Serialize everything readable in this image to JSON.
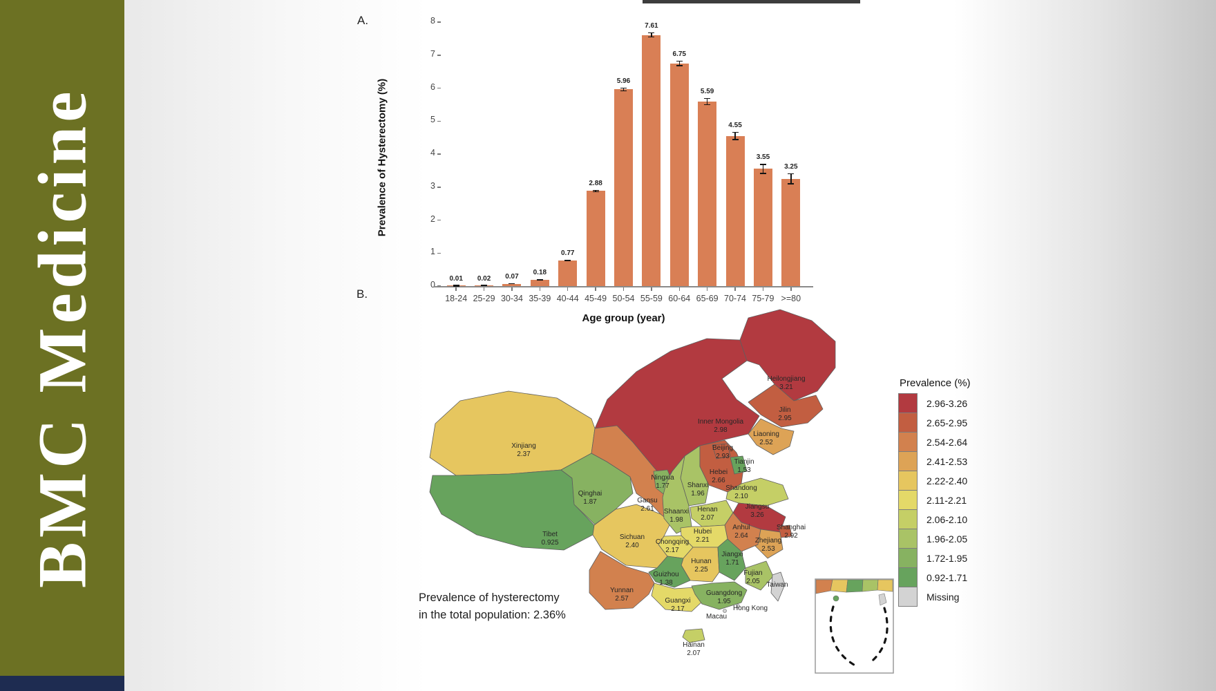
{
  "branding": {
    "journal": "BMC Medicine",
    "sidebar_color": "#6c7123",
    "footer_color": "#1e2c51"
  },
  "panel_a": {
    "label": "A."
  },
  "panel_b": {
    "label": "B.",
    "note_line1": "Prevalence of hysterectomy",
    "note_line2": "in the total population: 2.36%"
  },
  "chart_data": [
    {
      "type": "bar",
      "title": "",
      "xlabel": "Age group (year)",
      "ylabel": "Prevalence of Hysterectomy (%)",
      "ylim": [
        0,
        8
      ],
      "yticks": [
        0,
        1,
        2,
        3,
        4,
        5,
        6,
        7,
        8
      ],
      "grid": false,
      "bar_color": "#d97f55",
      "categories": [
        "18-24",
        "25-29",
        "30-34",
        "35-39",
        "40-44",
        "45-49",
        "50-54",
        "55-59",
        "60-64",
        "65-69",
        "70-74",
        "75-79",
        ">=80"
      ],
      "values": [
        0.01,
        0.02,
        0.07,
        0.18,
        0.77,
        2.88,
        5.96,
        7.61,
        6.75,
        5.59,
        4.55,
        3.55,
        3.25
      ],
      "errors": [
        0.008,
        0.01,
        0.015,
        0.02,
        0.025,
        0.04,
        0.06,
        0.08,
        0.08,
        0.11,
        0.13,
        0.15,
        0.17
      ],
      "value_labels": [
        "0.01",
        "0.02",
        "0.07",
        "0.18",
        "0.77",
        "2.88",
        "5.96",
        "7.61",
        "6.75",
        "5.59",
        "4.55",
        "3.55",
        "3.25"
      ]
    },
    {
      "type": "heatmap",
      "subtype": "choropleth-map-of-china",
      "legend_title": "Prevalence (%)",
      "legend_position": "right",
      "buckets": [
        {
          "label": "2.96-3.26",
          "color": "#b23a40"
        },
        {
          "label": "2.65-2.95",
          "color": "#c25e41"
        },
        {
          "label": "2.54-2.64",
          "color": "#d2814e"
        },
        {
          "label": "2.41-2.53",
          "color": "#dda356"
        },
        {
          "label": "2.22-2.40",
          "color": "#e6c65f"
        },
        {
          "label": "2.11-2.21",
          "color": "#e4d968"
        },
        {
          "label": "2.06-2.10",
          "color": "#c5cf66"
        },
        {
          "label": "1.96-2.05",
          "color": "#a9c366"
        },
        {
          "label": "1.72-1.95",
          "color": "#87b261"
        },
        {
          "label": "0.92-1.71",
          "color": "#67a35d"
        },
        {
          "label": "Missing",
          "color": "#d3d3d3"
        }
      ],
      "provinces": [
        {
          "id": "innermongolia",
          "name": "Inner Mongolia",
          "value": "2.98",
          "bucket": "2.96-3.26"
        },
        {
          "id": "heilongjiang",
          "name": "Heilongjiang",
          "value": "3.21",
          "bucket": "2.96-3.26"
        },
        {
          "id": "jilin",
          "name": "Jilin",
          "value": "2.95",
          "bucket": "2.65-2.95"
        },
        {
          "id": "liaoning",
          "name": "Liaoning",
          "value": "2.52",
          "bucket": "2.41-2.53"
        },
        {
          "id": "xinjiang",
          "name": "Xinjiang",
          "value": "2.37",
          "bucket": "2.22-2.40"
        },
        {
          "id": "tibet",
          "name": "Tibet",
          "value": "0.925",
          "bucket": "0.92-1.71"
        },
        {
          "id": "qinghai",
          "name": "Qinghai",
          "value": "1.87",
          "bucket": "1.72-1.95"
        },
        {
          "id": "gansu",
          "name": "Gansu",
          "value": "2.61",
          "bucket": "2.54-2.64"
        },
        {
          "id": "ningxia",
          "name": "Ningxia",
          "value": "1.77",
          "bucket": "1.72-1.95"
        },
        {
          "id": "sichuan",
          "name": "Sichuan",
          "value": "2.40",
          "bucket": "2.22-2.40"
        },
        {
          "id": "yunnan",
          "name": "Yunnan",
          "value": "2.57",
          "bucket": "2.54-2.64"
        },
        {
          "id": "shanxi",
          "name": "Shanxi",
          "value": "1.96",
          "bucket": "1.96-2.05"
        },
        {
          "id": "hebei",
          "name": "Hebei",
          "value": "2.66",
          "bucket": "2.65-2.95"
        },
        {
          "id": "beijing",
          "name": "Beijing",
          "value": "2.93",
          "bucket": "2.65-2.95"
        },
        {
          "id": "tianjin",
          "name": "Tianjin",
          "value": "1.53",
          "bucket": "0.92-1.71"
        },
        {
          "id": "shandong",
          "name": "Shandong",
          "value": "2.10",
          "bucket": "2.06-2.10"
        },
        {
          "id": "shaanxi",
          "name": "Shaanxi",
          "value": "1.98",
          "bucket": "1.96-2.05"
        },
        {
          "id": "henan",
          "name": "Henan",
          "value": "2.07",
          "bucket": "2.06-2.10"
        },
        {
          "id": "jiangsu",
          "name": "Jiangsu",
          "value": "3.26",
          "bucket": "2.96-3.26"
        },
        {
          "id": "anhui",
          "name": "Anhui",
          "value": "2.64",
          "bucket": "2.54-2.64"
        },
        {
          "id": "shanghai",
          "name": "Shanghai",
          "value": "2.92",
          "bucket": "2.65-2.95"
        },
        {
          "id": "hubei",
          "name": "Hubei",
          "value": "2.21",
          "bucket": "2.11-2.21"
        },
        {
          "id": "chongqing",
          "name": "Chongqing",
          "value": "2.17",
          "bucket": "2.11-2.21"
        },
        {
          "id": "zhejiang",
          "name": "Zhejiang",
          "value": "2.53",
          "bucket": "2.41-2.53"
        },
        {
          "id": "hunan",
          "name": "Hunan",
          "value": "2.25",
          "bucket": "2.22-2.40"
        },
        {
          "id": "jiangxi",
          "name": "Jiangxi",
          "value": "1.71",
          "bucket": "0.92-1.71"
        },
        {
          "id": "guizhou",
          "name": "Guizhou",
          "value": "1.38",
          "bucket": "0.92-1.71"
        },
        {
          "id": "fujian",
          "name": "Fujian",
          "value": "2.05",
          "bucket": "1.96-2.05"
        },
        {
          "id": "guangxi",
          "name": "Guangxi",
          "value": "2.17",
          "bucket": "2.11-2.21"
        },
        {
          "id": "guangdong",
          "name": "Guangdong",
          "value": "1.95",
          "bucket": "1.72-1.95"
        },
        {
          "id": "hainan",
          "name": "Hainan",
          "value": "2.07",
          "bucket": "2.06-2.10"
        },
        {
          "id": "taiwan",
          "name": "Taiwan",
          "value": "",
          "bucket": "Missing"
        },
        {
          "id": "hongkong",
          "name": "Hong Kong",
          "value": "",
          "bucket": "Missing"
        },
        {
          "id": "macau",
          "name": "Macau",
          "value": "",
          "bucket": "Missing"
        }
      ]
    }
  ]
}
